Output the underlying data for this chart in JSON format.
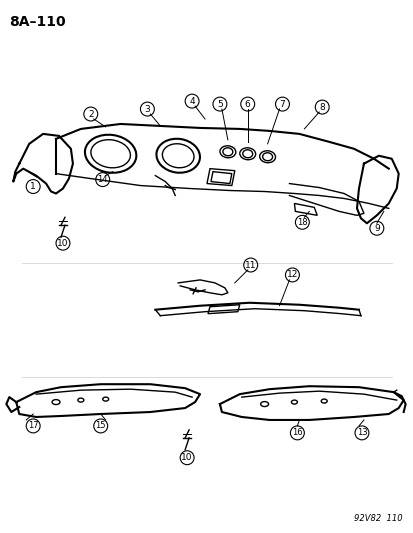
{
  "title": "8A–110",
  "watermark": "92V82  110",
  "background_color": "#ffffff",
  "line_color": "#000000",
  "label_numbers": [
    1,
    2,
    3,
    4,
    5,
    6,
    7,
    8,
    9,
    10,
    11,
    12,
    13,
    14,
    15,
    16,
    17,
    18
  ],
  "figsize": [
    4.14,
    5.33
  ],
  "dpi": 100
}
